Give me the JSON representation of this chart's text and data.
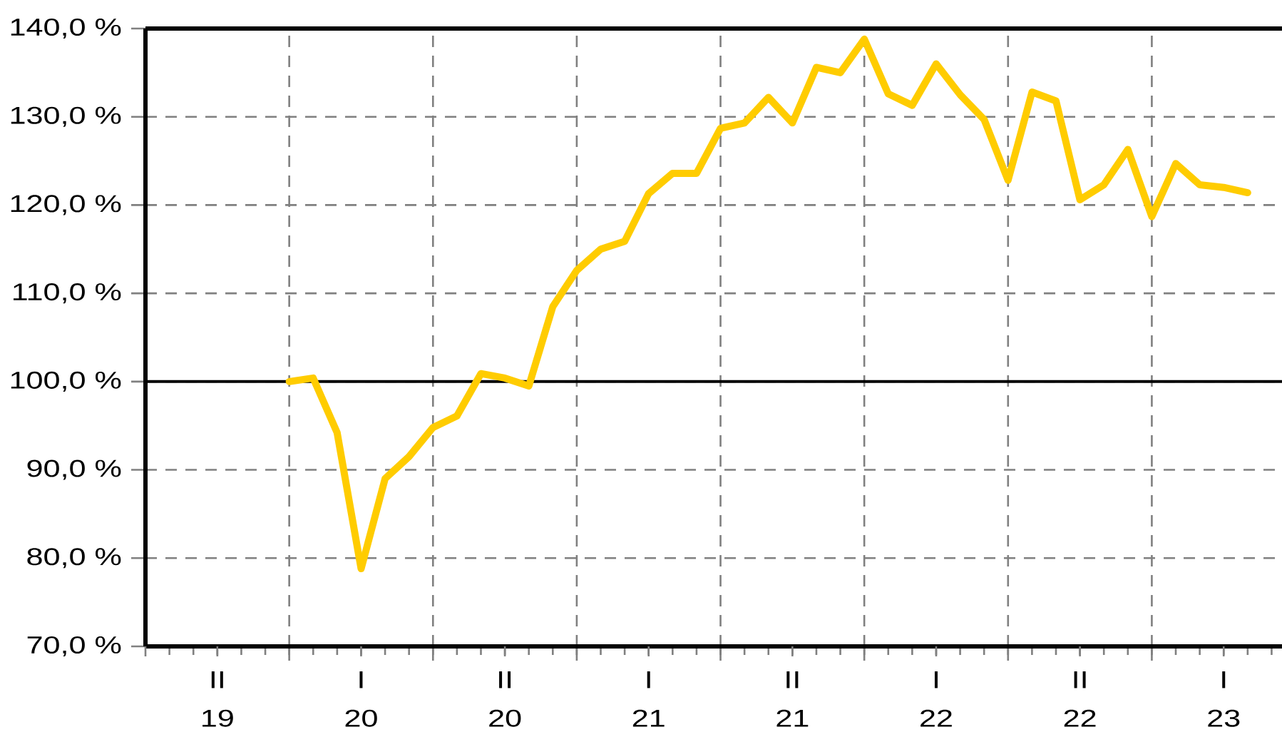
{
  "chart_data": {
    "type": "line",
    "x": [
      "2020-01",
      "2020-02",
      "2020-03",
      "2020-04",
      "2020-05",
      "2020-06",
      "2020-07",
      "2020-08",
      "2020-09",
      "2020-10",
      "2020-11",
      "2020-12",
      "2021-01",
      "2021-02",
      "2021-03",
      "2021-04",
      "2021-05",
      "2021-06",
      "2021-07",
      "2021-08",
      "2021-09",
      "2021-10",
      "2021-11",
      "2021-12",
      "2022-01",
      "2022-02",
      "2022-03",
      "2022-04",
      "2022-05",
      "2022-06",
      "2022-07",
      "2022-08",
      "2022-09",
      "2022-10",
      "2022-11",
      "2022-12",
      "2023-01",
      "2023-02",
      "2023-03",
      "2023-04",
      "2023-05"
    ],
    "values": [
      100.0,
      100.4,
      94.2,
      78.8,
      89.0,
      91.5,
      94.8,
      96.1,
      100.9,
      100.4,
      99.5,
      108.5,
      112.6,
      115.0,
      115.9,
      121.3,
      123.6,
      123.6,
      128.7,
      129.3,
      132.2,
      129.3,
      135.6,
      135.0,
      138.8,
      132.6,
      131.3,
      136.0,
      132.5,
      129.7,
      122.8,
      132.8,
      131.8,
      120.6,
      122.3,
      126.3,
      118.7,
      124.7,
      122.3,
      122.0,
      121.4
    ],
    "color": "#ffcc00",
    "xlim": [
      "2019-07",
      "2023-06-14"
    ],
    "xticks": [
      {
        "value": "2019-07",
        "label": null
      },
      {
        "value": "2019-10",
        "label": "II 19"
      },
      {
        "value": "2020-01",
        "label": null
      },
      {
        "value": "2020-04",
        "label": "I 20"
      },
      {
        "value": "2020-07",
        "label": null
      },
      {
        "value": "2020-10",
        "label": "II 20"
      },
      {
        "value": "2021-01",
        "label": null
      },
      {
        "value": "2021-04",
        "label": "I 21"
      },
      {
        "value": "2021-07",
        "label": null
      },
      {
        "value": "2021-10",
        "label": "II 21"
      },
      {
        "value": "2022-01",
        "label": null
      },
      {
        "value": "2022-04",
        "label": "I 22"
      },
      {
        "value": "2022-07",
        "label": null
      },
      {
        "value": "2022-10",
        "label": "II 22"
      },
      {
        "value": "2023-01",
        "label": null
      },
      {
        "value": "2023-04",
        "label": "I 23"
      }
    ],
    "ylim": [
      70,
      140
    ],
    "yticks": [
      {
        "value": 70,
        "label": "70,0 %"
      },
      {
        "value": 80,
        "label": "80,0 %"
      },
      {
        "value": 90,
        "label": "90,0 %"
      },
      {
        "value": 100,
        "label": "100,0 %"
      },
      {
        "value": 110,
        "label": "110,0 %"
      },
      {
        "value": 120,
        "label": "120,0 %"
      },
      {
        "value": 130,
        "label": "130,0 %"
      },
      {
        "value": 140,
        "label": "140,0 %"
      }
    ],
    "ref_lines": [
      {
        "axis": "y",
        "value": 100,
        "color": "#000000",
        "line_style": "solid"
      }
    ],
    "grid": true
  }
}
